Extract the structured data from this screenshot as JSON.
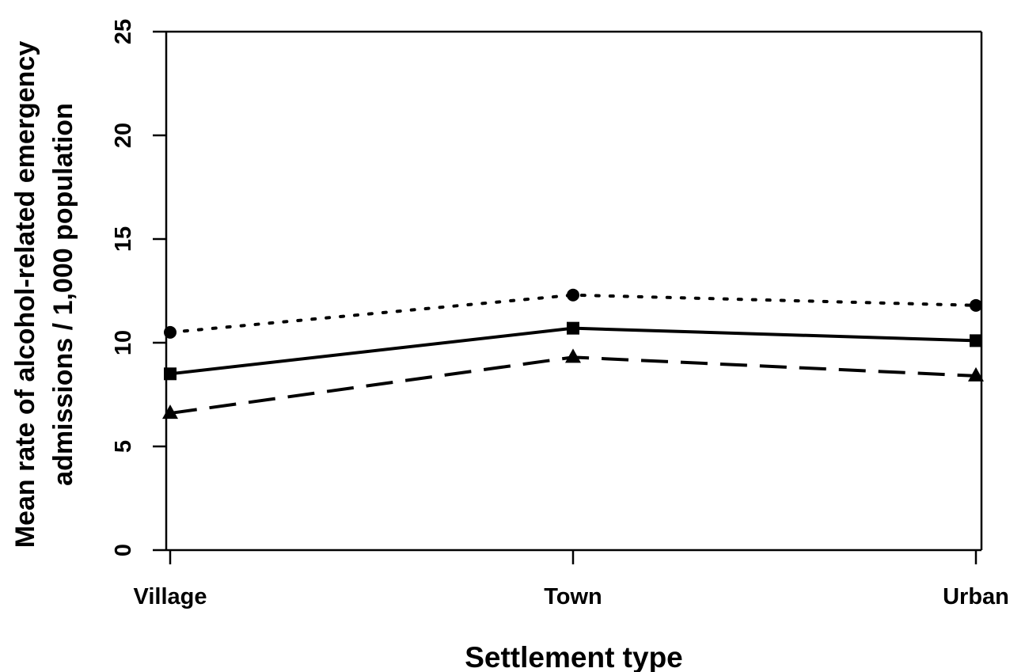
{
  "chart_data": {
    "type": "line",
    "title": "",
    "xlabel": "Settlement type",
    "ylabel_lines": [
      "Mean rate of alcohol-related emergency",
      "admissions / 1,000 population"
    ],
    "categories": [
      "Village",
      "Town",
      "Urban"
    ],
    "ylim": [
      0,
      25
    ],
    "yticks": [
      0,
      5,
      10,
      15,
      20,
      25
    ],
    "grid": false,
    "legend": "none",
    "series": [
      {
        "line_style": "dotted",
        "marker": "circle",
        "color": "#000000",
        "values": [
          10.5,
          12.3,
          11.8
        ]
      },
      {
        "line_style": "solid",
        "marker": "square",
        "color": "#000000",
        "values": [
          8.5,
          10.7,
          10.1
        ]
      },
      {
        "line_style": "dashed",
        "marker": "triangle",
        "color": "#000000",
        "values": [
          6.6,
          9.3,
          8.4
        ]
      }
    ]
  }
}
